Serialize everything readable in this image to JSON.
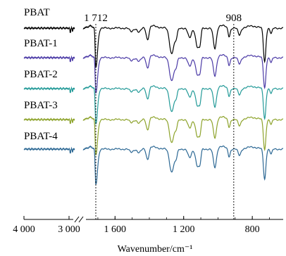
{
  "chart_data": {
    "type": "line",
    "xlabel": "Wavenumber/cm⁻¹",
    "x_axis": {
      "reversed": true,
      "broken": true,
      "break_between": [
        3000,
        1712
      ],
      "ticks": [
        {
          "value": 4000,
          "label": "4 000"
        },
        {
          "value": 3000,
          "label": "3 000"
        },
        {
          "value": 1600,
          "label": "1 600"
        },
        {
          "value": 1200,
          "label": "1 200"
        },
        {
          "value": 800,
          "label": "800"
        }
      ]
    },
    "reference_lines": [
      {
        "x": 1712,
        "label": "1 712",
        "style": "dotted"
      },
      {
        "x": 908,
        "label": "908",
        "style": "dotted"
      }
    ],
    "y_axis": {
      "shown": false,
      "note": "curves vertically offset"
    },
    "series": [
      {
        "name": "PBAT",
        "color": "#000000"
      },
      {
        "name": "PBAT-1",
        "color": "#4b3aa6"
      },
      {
        "name": "PBAT-2",
        "color": "#239a98"
      },
      {
        "name": "PBAT-3",
        "color": "#8da32b"
      },
      {
        "name": "PBAT-4",
        "color": "#2c6894"
      }
    ],
    "grid": false
  }
}
